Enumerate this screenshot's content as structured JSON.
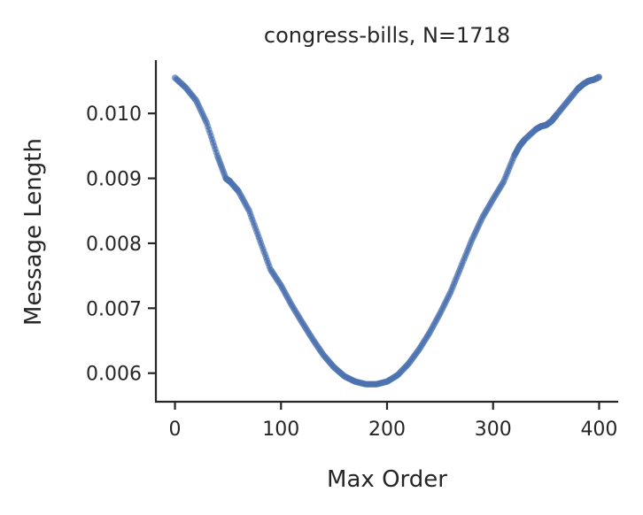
{
  "chart_data": {
    "type": "line",
    "title": "congress-bills, N=1718",
    "xlabel": "Max Order",
    "ylabel": "Message Length",
    "xlim": [
      -18,
      418
    ],
    "ylim": [
      0.00556,
      0.01082
    ],
    "xticks": [
      0,
      100,
      200,
      300,
      400
    ],
    "yticks": [
      0.006,
      0.007,
      0.008,
      0.009,
      0.01
    ],
    "xtick_labels": [
      "0",
      "100",
      "200",
      "300",
      "400"
    ],
    "ytick_labels": [
      "0.006",
      "0.007",
      "0.008",
      "0.009",
      "0.010"
    ],
    "grid": false,
    "markers": true,
    "series": [
      {
        "name": "",
        "color": "#4C72B0",
        "x": [
          0,
          10,
          20,
          30,
          40,
          48,
          52,
          60,
          70,
          80,
          90,
          100,
          110,
          120,
          130,
          140,
          150,
          160,
          170,
          180,
          190,
          200,
          210,
          220,
          230,
          240,
          250,
          260,
          270,
          280,
          290,
          300,
          310,
          320,
          325,
          330,
          340,
          345,
          350,
          355,
          360,
          370,
          380,
          385,
          390,
          395,
          400
        ],
        "y": [
          0.01055,
          0.0104,
          0.0102,
          0.00985,
          0.00935,
          0.009,
          0.00895,
          0.0088,
          0.0085,
          0.00805,
          0.0076,
          0.00735,
          0.00705,
          0.00678,
          0.00652,
          0.00628,
          0.00609,
          0.00595,
          0.00587,
          0.00583,
          0.00583,
          0.00587,
          0.00597,
          0.00614,
          0.00636,
          0.00662,
          0.00692,
          0.00725,
          0.00765,
          0.00805,
          0.0084,
          0.00868,
          0.00895,
          0.00935,
          0.0095,
          0.0096,
          0.00975,
          0.0098,
          0.00982,
          0.00988,
          0.00998,
          0.01018,
          0.01038,
          0.01045,
          0.0105,
          0.01052,
          0.01056
        ]
      }
    ]
  }
}
